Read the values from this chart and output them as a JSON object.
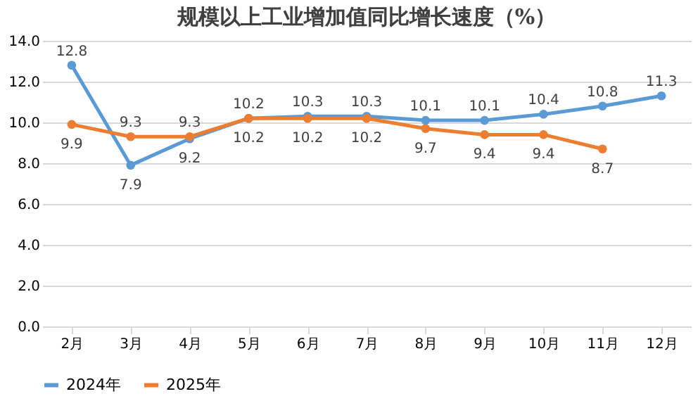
{
  "chart_data": {
    "type": "line",
    "title": "规模以上工业增加值同比增长速度（%）",
    "categories": [
      "2月",
      "3月",
      "4月",
      "5月",
      "6月",
      "7月",
      "8月",
      "9月",
      "10月",
      "11月",
      "12月"
    ],
    "series": [
      {
        "name": "2024年",
        "color": "#5b9bd5",
        "values": [
          12.8,
          7.9,
          9.2,
          10.2,
          10.3,
          10.3,
          10.1,
          10.1,
          10.4,
          10.8,
          11.3
        ]
      },
      {
        "name": "2025年",
        "color": "#ed7d31",
        "values": [
          9.9,
          9.3,
          9.3,
          10.2,
          10.2,
          10.2,
          9.7,
          9.4,
          9.4,
          8.7,
          null
        ]
      }
    ],
    "ylim": [
      0,
      14
    ],
    "yticks": [
      {
        "value": 0,
        "label": "0.0"
      },
      {
        "value": 2,
        "label": "2.0"
      },
      {
        "value": 4,
        "label": "4.0"
      },
      {
        "value": 6,
        "label": "6.0"
      },
      {
        "value": 8,
        "label": "8.0"
      },
      {
        "value": 10,
        "label": "10.0"
      },
      {
        "value": 12,
        "label": "12.0"
      },
      {
        "value": 14,
        "label": "14.0"
      }
    ],
    "grid": "y",
    "legend": "bottom",
    "marker": "circle",
    "line_style": "solid",
    "data_labels": true
  }
}
